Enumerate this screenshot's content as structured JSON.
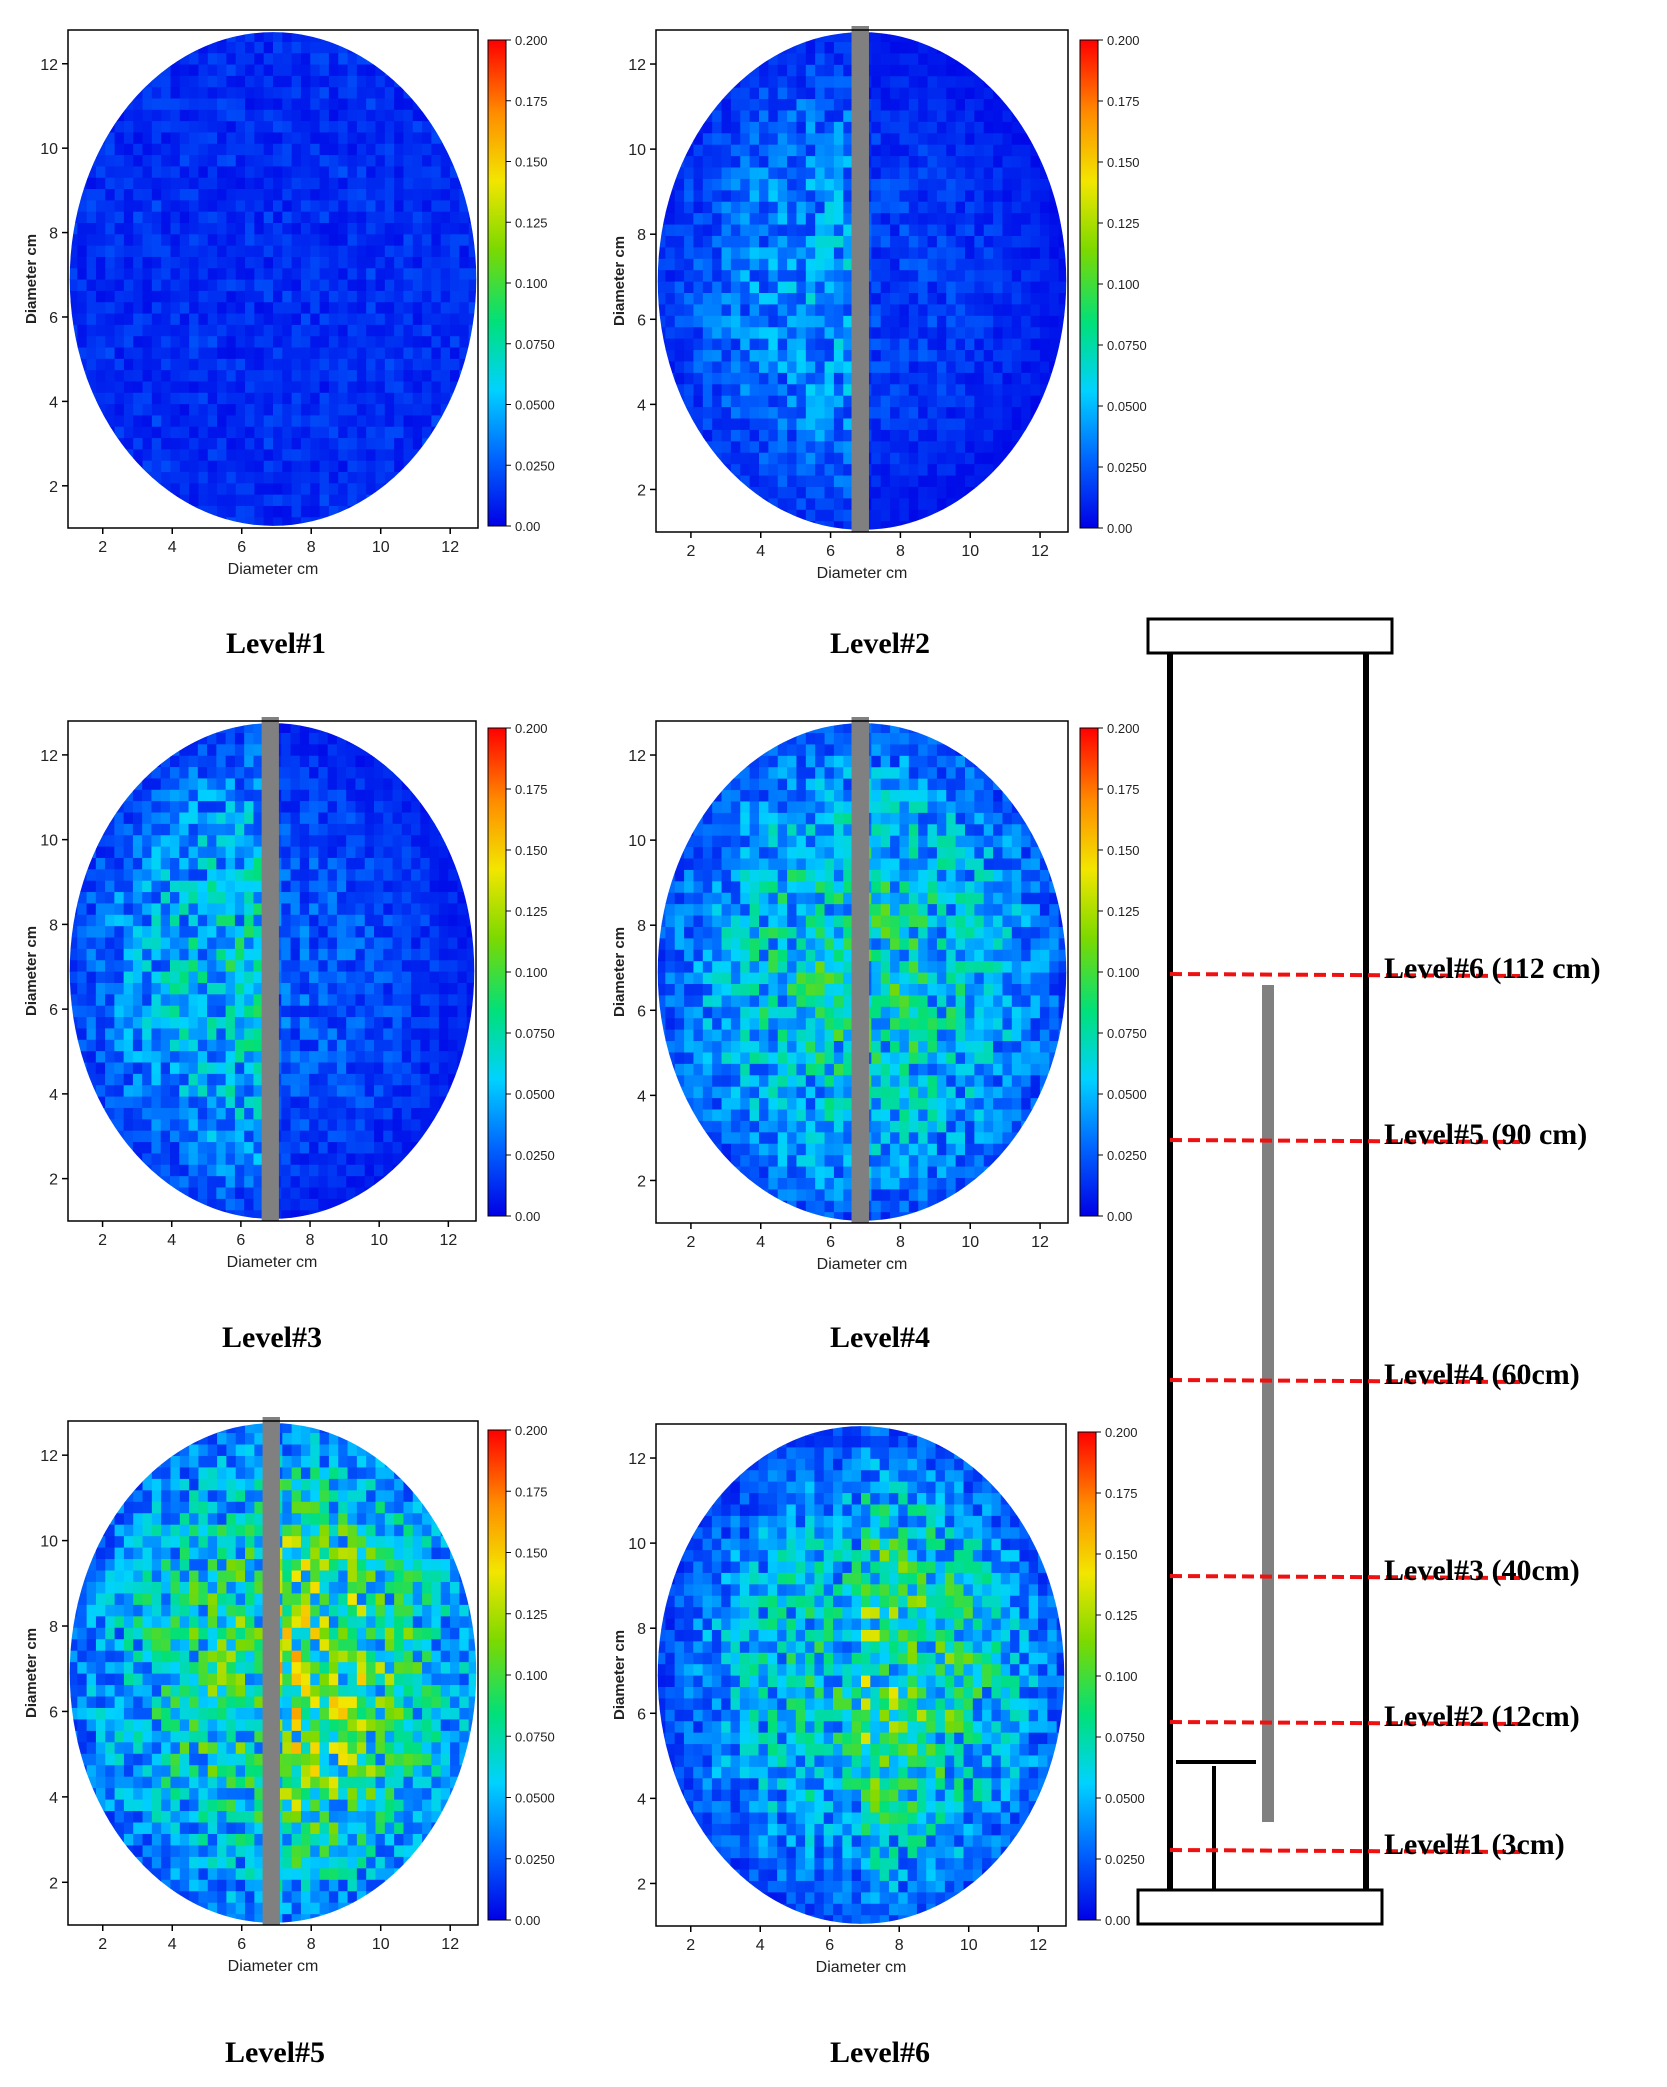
{
  "chart_data": {
    "type": "heatmap",
    "x_label": "Diameter cm",
    "y_label": "Diameter cm",
    "x_ticks": [
      2,
      4,
      6,
      8,
      10,
      12
    ],
    "y_ticks": [
      2,
      4,
      6,
      8,
      10,
      12
    ],
    "xlim": [
      1,
      12.8
    ],
    "ylim": [
      1,
      12.8
    ],
    "colorbar_ticks": [
      "0.200",
      "0.175",
      "0.150",
      "0.125",
      "0.100",
      "0.0750",
      "0.0500",
      "0.0250",
      "0.00"
    ],
    "colorbar_range": [
      0,
      0.2
    ],
    "colormap": [
      "#0000e6",
      "#0064ff",
      "#00d2ff",
      "#00e07a",
      "#7cd900",
      "#f2e600",
      "#ff8c00",
      "#ff0000"
    ],
    "rod_color": "#808080",
    "panels": [
      {
        "caption": "Level#1",
        "rod": false,
        "mean": 0.012,
        "profile": "uniform-low"
      },
      {
        "caption": "Level#2",
        "rod": true,
        "mean": 0.025,
        "profile": "left-higher"
      },
      {
        "caption": "Level#3",
        "rod": true,
        "mean": 0.035,
        "profile": "left-higher"
      },
      {
        "caption": "Level#4",
        "rod": true,
        "mean": 0.05,
        "profile": "both-sides"
      },
      {
        "caption": "Level#5",
        "rod": true,
        "mean": 0.065,
        "profile": "right-higher"
      },
      {
        "caption": "Level#6",
        "rod": false,
        "mean": 0.055,
        "profile": "center-right-higher"
      }
    ]
  },
  "column_diagram": {
    "labels": [
      "Level#6 (112 cm)",
      "Level#5 (90 cm)",
      "Level#4 (60cm)",
      "Level#3 (40cm)",
      "Level#2 (12cm)",
      "Level#1 (3cm)"
    ],
    "heights_cm": [
      112,
      90,
      60,
      40,
      12,
      3
    ],
    "line_color": "#ee1111"
  }
}
